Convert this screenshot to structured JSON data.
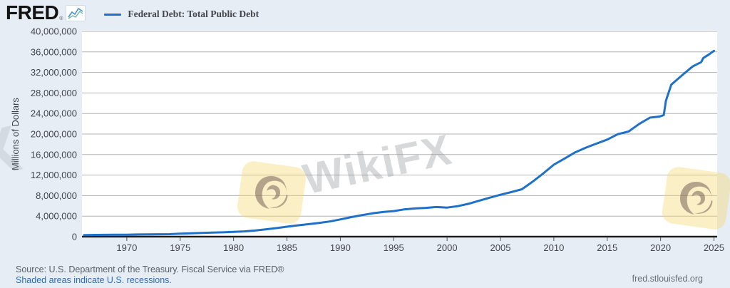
{
  "header": {
    "logo_text": "FRED",
    "registered_mark": "®"
  },
  "legend": {
    "label": "Federal Debt: Total Public Debt"
  },
  "footer": {
    "source": "Source: U.S. Department of the Treasury. Fiscal Service via FRED®",
    "recession_note": "Shaded areas indicate U.S. recessions.",
    "site": "fred.stlouisfed.org"
  },
  "watermark": {
    "text": "WikiFX",
    "partial_text": "X"
  },
  "colors": {
    "background": "#e7edf4",
    "plot_background": "#ffffff",
    "gridline": "#b3b3b3",
    "axis": "#1c1c1c",
    "line": "#1e70c8",
    "tick_label": "#43474c",
    "link": "#2a6ebb"
  },
  "chart_data": {
    "type": "line",
    "title": "Federal Debt: Total Public Debt",
    "xlabel": "",
    "ylabel": "Millions of Dollars",
    "xlim": [
      1965.8,
      2025.3
    ],
    "ylim": [
      0,
      40000000
    ],
    "grid": true,
    "legend_position": "top-left",
    "x_ticks": [
      1970,
      1975,
      1980,
      1985,
      1990,
      1995,
      2000,
      2005,
      2010,
      2015,
      2020,
      2025
    ],
    "y_ticks": [
      0,
      4000000,
      8000000,
      12000000,
      16000000,
      20000000,
      24000000,
      28000000,
      32000000,
      36000000,
      40000000
    ],
    "series": [
      {
        "name": "Federal Debt: Total Public Debt",
        "color": "#1e70c8",
        "x": [
          1966,
          1967,
          1968,
          1969,
          1970,
          1971,
          1972,
          1973,
          1974,
          1975,
          1976,
          1977,
          1978,
          1979,
          1980,
          1981,
          1982,
          1983,
          1984,
          1985,
          1986,
          1987,
          1988,
          1989,
          1990,
          1991,
          1992,
          1993,
          1994,
          1995,
          1996,
          1997,
          1998,
          1999,
          2000,
          2001,
          2002,
          2003,
          2004,
          2005,
          2006,
          2007,
          2008,
          2009,
          2010,
          2011,
          2012,
          2013,
          2014,
          2015,
          2016,
          2017,
          2018,
          2019,
          2019.9,
          2020.3,
          2020.5,
          2021,
          2022,
          2023,
          2023.8,
          2024,
          2024.5,
          2025
        ],
        "values": [
          326221,
          344663,
          358029,
          368226,
          389158,
          424131,
          449298,
          469899,
          492665,
          576649,
          653544,
          718943,
          789207,
          845116,
          930210,
          1028729,
          1197073,
          1410702,
          1662966,
          1945941,
          2214834,
          2431715,
          2684392,
          2952994,
          3364820,
          3801698,
          4177009,
          4535687,
          4800150,
          4988665,
          5323172,
          5502388,
          5614217,
          5776091,
          5662216,
          5943439,
          6405707,
          6998021,
          7596143,
          8170424,
          8680224,
          9229172,
          10699805,
          12311350,
          14025215,
          15222940,
          16432730,
          17351970,
          18141444,
          18922179,
          19976827,
          20492747,
          21974096,
          23201380,
          23400000,
          23700000,
          26477000,
          29617215,
          31419689,
          33167000,
          34001494,
          34800000,
          35460000,
          36210000
        ]
      }
    ]
  }
}
